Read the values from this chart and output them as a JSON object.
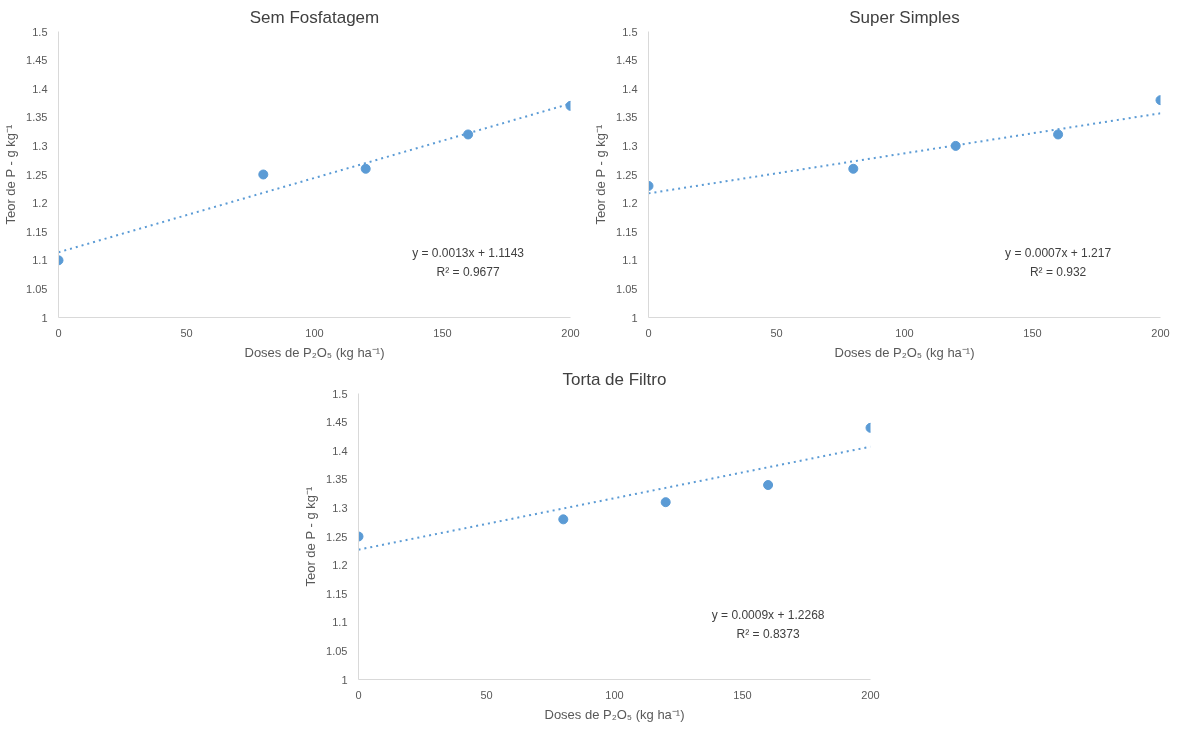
{
  "chart_data": [
    {
      "type": "scatter",
      "title": "Sem Fosfatagem",
      "xlabel": "Doses de P₂O₅ (kg ha⁻¹)",
      "ylabel": "Teor de P - g kg⁻¹",
      "x": [
        0,
        80,
        120,
        160,
        200
      ],
      "xlim": [
        0,
        200
      ],
      "xticks": [
        0,
        50,
        100,
        150,
        200
      ],
      "ylim": [
        1,
        1.5
      ],
      "yticks": [
        1,
        1.05,
        1.1,
        1.15,
        1.2,
        1.25,
        1.3,
        1.35,
        1.4,
        1.45,
        1.5
      ],
      "grid": false,
      "marker": "circle",
      "annotations": [
        "y = 0.0013x + 1.1143",
        "R² = 0.9677"
      ],
      "series": [
        {
          "color": "#5b9bd5",
          "values": [
            1.1,
            1.25,
            1.26,
            1.32,
            1.37
          ]
        },
        {
          "type": "line",
          "line_style": "dotted",
          "marker": "none",
          "color": "#5b9bd5",
          "values": [
            1.114,
            1.218,
            1.27,
            1.322,
            1.374
          ]
        }
      ]
    },
    {
      "type": "scatter",
      "title": "Super Simples",
      "xlabel": "Doses de P₂O₅ (kg ha⁻¹)",
      "ylabel": "Teor de P - g kg⁻¹",
      "x": [
        0,
        80,
        120,
        160,
        200
      ],
      "xlim": [
        0,
        200
      ],
      "xticks": [
        0,
        50,
        100,
        150,
        200
      ],
      "ylim": [
        1,
        1.5
      ],
      "yticks": [
        1,
        1.05,
        1.1,
        1.15,
        1.2,
        1.25,
        1.3,
        1.35,
        1.4,
        1.45,
        1.5
      ],
      "grid": false,
      "marker": "circle",
      "annotations": [
        "y = 0.0007x + 1.217",
        "R² = 0.932"
      ],
      "series": [
        {
          "color": "#5b9bd5",
          "values": [
            1.23,
            1.26,
            1.3,
            1.32,
            1.38
          ]
        },
        {
          "type": "line",
          "line_style": "dotted",
          "marker": "none",
          "color": "#5b9bd5",
          "values": [
            1.217,
            1.273,
            1.301,
            1.329,
            1.357
          ]
        }
      ]
    },
    {
      "type": "scatter",
      "title": "Torta de Filtro",
      "xlabel": "Doses de P₂O₅ (kg ha⁻¹)",
      "ylabel": "Teor de P - g kg⁻¹",
      "x": [
        0,
        80,
        120,
        160,
        200
      ],
      "xlim": [
        0,
        200
      ],
      "xticks": [
        0,
        50,
        100,
        150,
        200
      ],
      "ylim": [
        1,
        1.5
      ],
      "yticks": [
        1,
        1.05,
        1.1,
        1.15,
        1.2,
        1.25,
        1.3,
        1.35,
        1.4,
        1.45,
        1.5
      ],
      "grid": false,
      "marker": "circle",
      "annotations": [
        "y = 0.0009x + 1.2268",
        "R² = 0.8373"
      ],
      "series": [
        {
          "color": "#5b9bd5",
          "values": [
            1.25,
            1.28,
            1.31,
            1.34,
            1.44
          ]
        },
        {
          "type": "line",
          "line_style": "dotted",
          "marker": "none",
          "color": "#5b9bd5",
          "values": [
            1.227,
            1.299,
            1.335,
            1.371,
            1.407
          ]
        }
      ]
    }
  ]
}
